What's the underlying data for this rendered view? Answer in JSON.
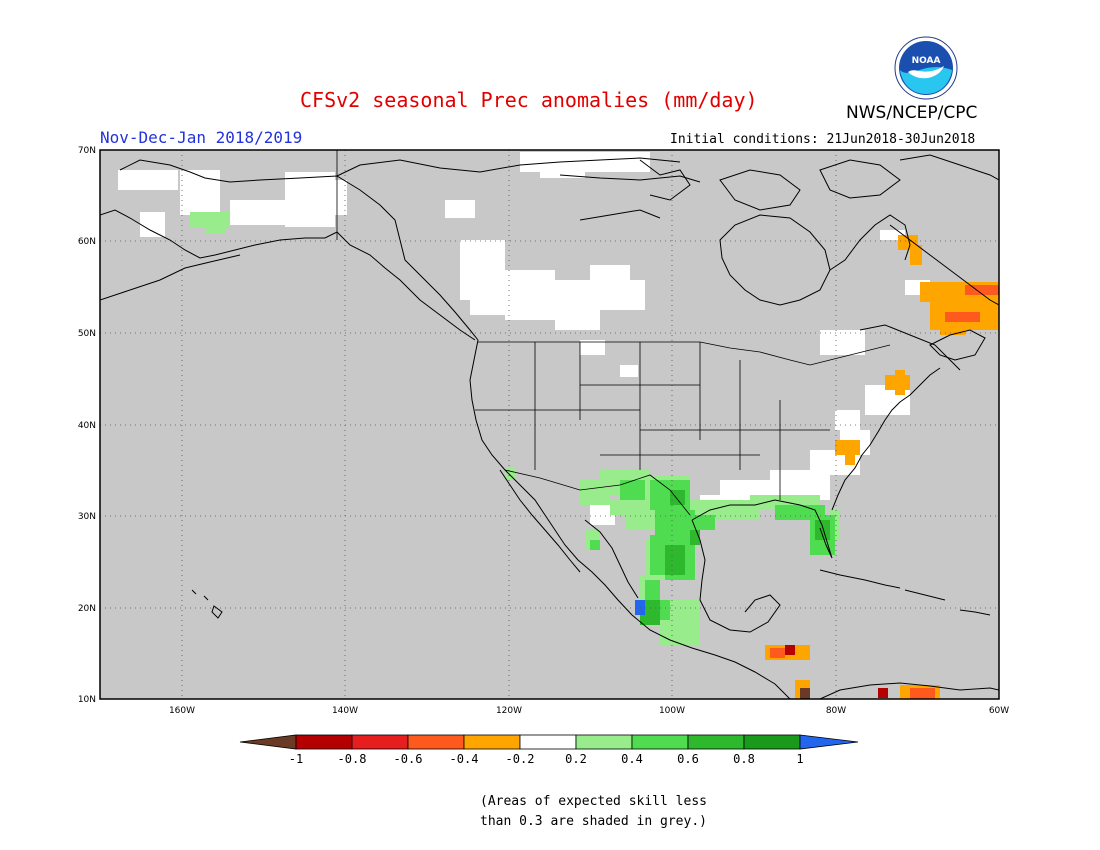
{
  "header": {
    "title": "CFSv2 seasonal Prec anomalies (mm/day)",
    "agency": "NWS/NCEP/CPC",
    "season": "Nov-Dec-Jan 2018/2019",
    "initial_conditions": "Initial conditions: 21Jun2018-30Jun2018",
    "logo_text": "NOAA"
  },
  "map": {
    "lat_range": [
      10,
      70
    ],
    "lon_range": [
      -170,
      -60
    ],
    "lat_labels": [
      "70N",
      "60N",
      "50N",
      "40N",
      "30N",
      "20N",
      "10N"
    ],
    "lon_labels": [
      "160W",
      "140W",
      "120W",
      "100W",
      "80W",
      "60W"
    ],
    "grid": "dotted",
    "background_color": "#c8c8c8"
  },
  "colorbar": {
    "labels": [
      "-1",
      "-0.8",
      "-0.6",
      "-0.4",
      "-0.2",
      "0.2",
      "0.4",
      "0.6",
      "0.8",
      "1"
    ],
    "colors": [
      "#6b3a26",
      "#b40000",
      "#e61e1e",
      "#ff5a1e",
      "#ffa500",
      "#ffffff",
      "#98ec8c",
      "#50dc50",
      "#2eb82e",
      "#1a9a1a",
      "#2266ee"
    ]
  },
  "footnote": {
    "line1": "(Areas of expected skill less",
    "line2": "than 0.3 are shaded in grey.)"
  }
}
